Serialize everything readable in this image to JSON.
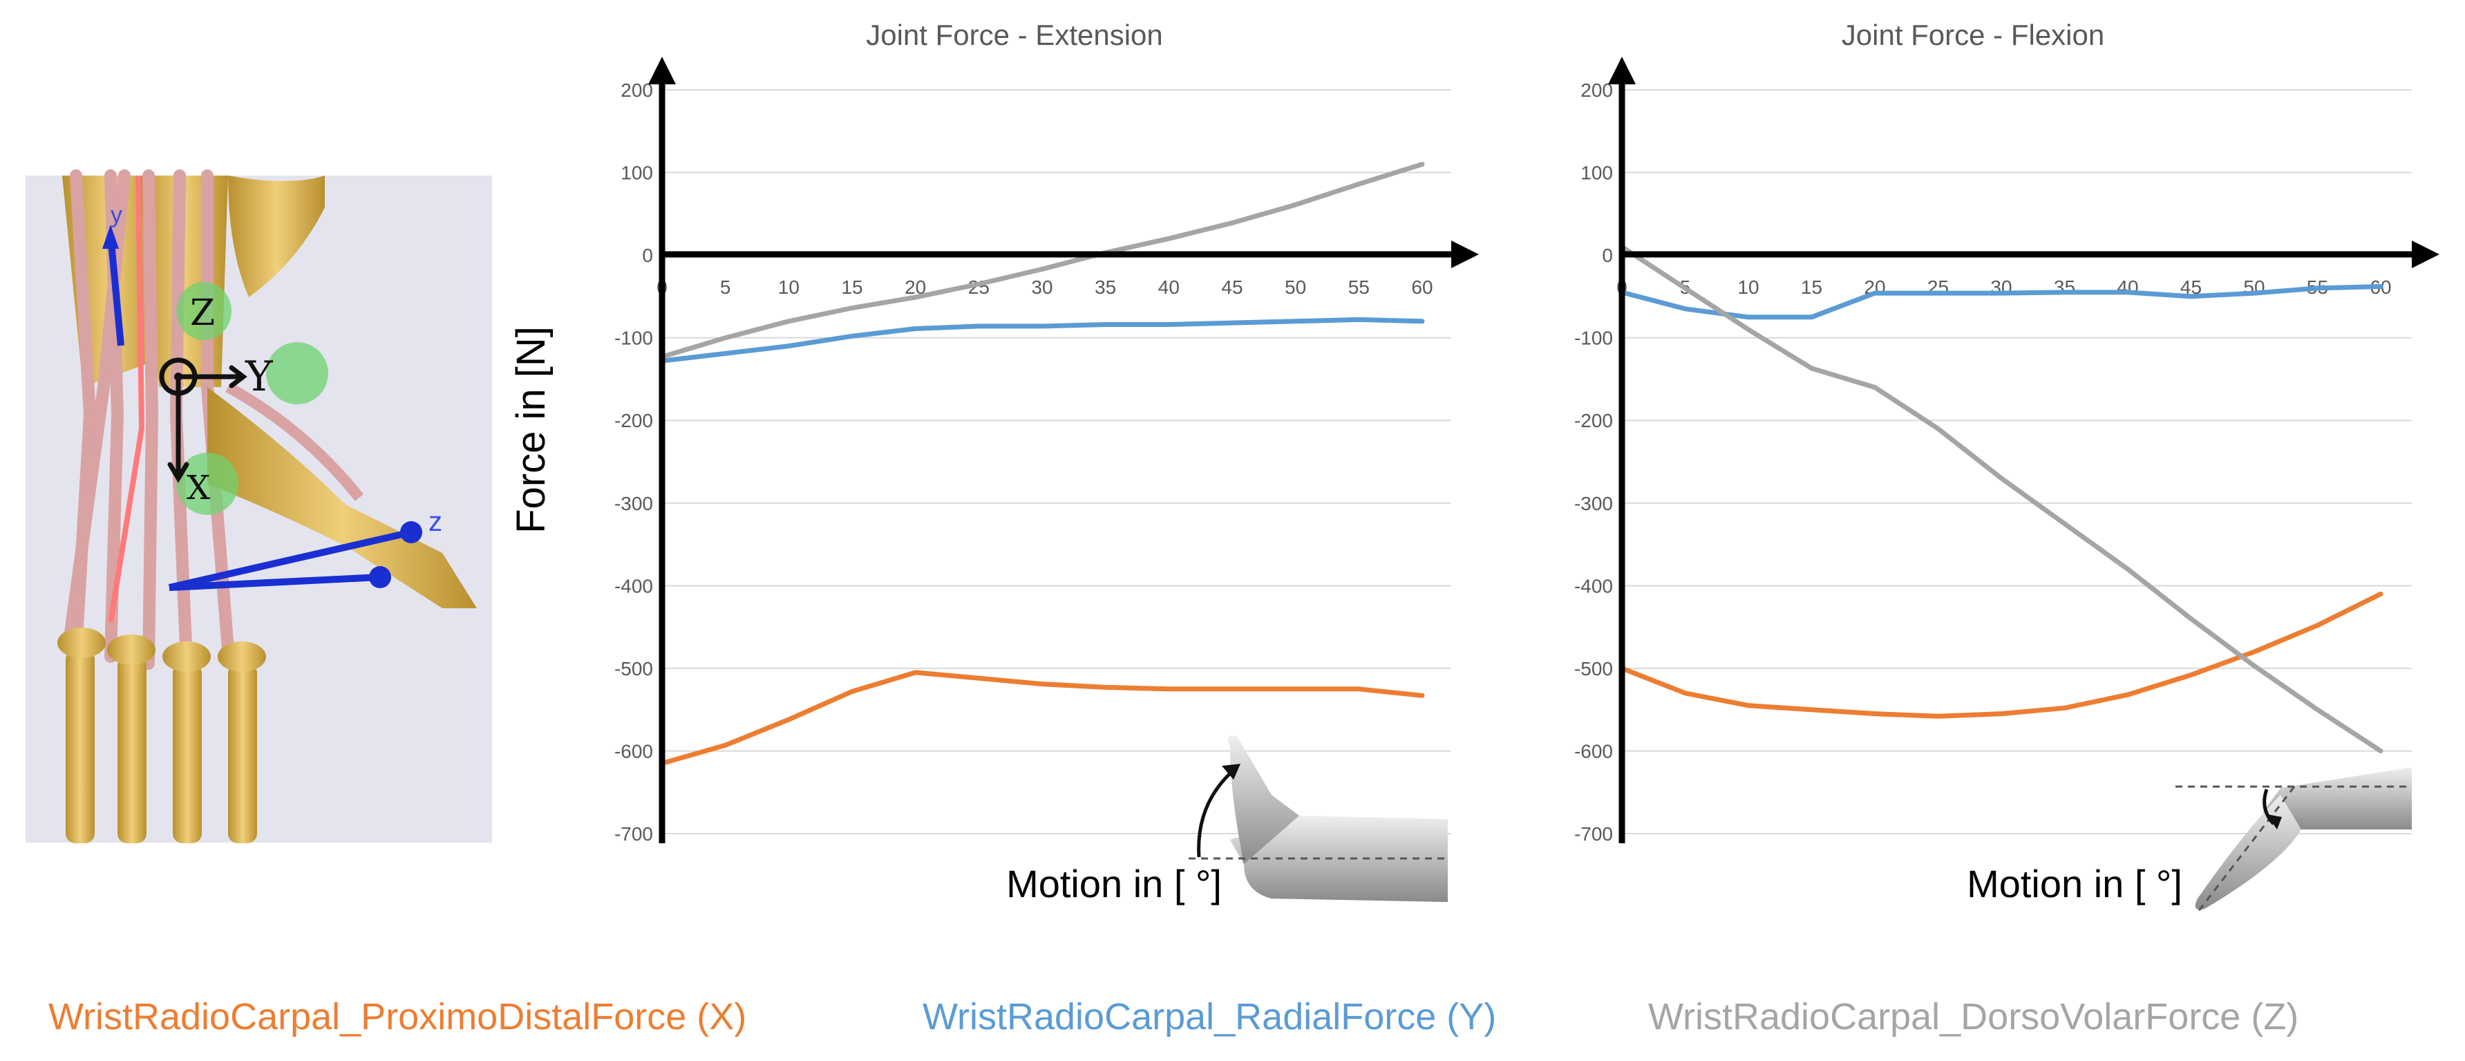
{
  "chart_data": [
    {
      "type": "line",
      "title": "Joint Force - Extension",
      "ylabel": "Force in [N]",
      "xlabel": "Motion in [ °]",
      "ylim": [
        -700,
        200
      ],
      "yticks": [
        200,
        100,
        0,
        -100,
        -200,
        -300,
        -400,
        -500,
        -600,
        -700
      ],
      "x": [
        0,
        5,
        10,
        15,
        20,
        25,
        30,
        35,
        40,
        45,
        50,
        55,
        60
      ],
      "grid": true,
      "series": [
        {
          "name": "WristRadioCarpal_ProximoDistalForce (X)",
          "color": "#ED7D31",
          "values": [
            -615,
            -593,
            -562,
            -528,
            -505,
            -512,
            -519,
            -523,
            -525,
            -525,
            -525,
            -525,
            -533
          ]
        },
        {
          "name": "WristRadioCarpal_RadialForce (Y)",
          "color": "#5B9BD5",
          "values": [
            -128,
            -119,
            -110,
            -98,
            -89,
            -86,
            -86,
            -84,
            -84,
            -82,
            -80,
            -78,
            -80
          ]
        },
        {
          "name": "WristRadioCarpal_DorsoVolarForce (Z)",
          "color": "#A5A5A5",
          "values": [
            -123,
            -100,
            -80,
            -64,
            -51,
            -35,
            -17,
            3,
            20,
            39,
            61,
            86,
            110
          ]
        }
      ]
    },
    {
      "type": "line",
      "title": "Joint Force - Flexion",
      "ylabel": "",
      "xlabel": "Motion in [ °]",
      "ylim": [
        -700,
        200
      ],
      "yticks": [
        200,
        100,
        0,
        -100,
        -200,
        -300,
        -400,
        -500,
        -600,
        -700
      ],
      "x": [
        0,
        5,
        10,
        15,
        20,
        25,
        30,
        35,
        40,
        45,
        50,
        55,
        60
      ],
      "grid": true,
      "series": [
        {
          "name": "WristRadioCarpal_ProximoDistalForce (X)",
          "color": "#ED7D31",
          "values": [
            -500,
            -530,
            -545,
            -550,
            -555,
            -558,
            -555,
            -548,
            -532,
            -508,
            -480,
            -448,
            -410
          ]
        },
        {
          "name": "WristRadioCarpal_RadialForce (Y)",
          "color": "#5B9BD5",
          "values": [
            -45,
            -65,
            -75,
            -75,
            -46,
            -46,
            -46,
            -45,
            -45,
            -50,
            -46,
            -40,
            -38
          ]
        },
        {
          "name": "WristRadioCarpal_DorsoVolarForce (Z)",
          "color": "#A5A5A5",
          "values": [
            10,
            -40,
            -90,
            -137,
            -160,
            -210,
            -270,
            -325,
            -380,
            -440,
            -497,
            -550,
            -600
          ]
        }
      ]
    }
  ],
  "anatomy_labels": {
    "z_hand": "Z",
    "y_hand": "Y",
    "x_hand": "X",
    "y_axis": "y",
    "z_axis": "z"
  },
  "legend": [
    {
      "label": "WristRadioCarpal_ProximoDistalForce (X)",
      "color": "#ED7D31"
    },
    {
      "label": "WristRadioCarpal_RadialForce (Y)",
      "color": "#5B9BD5"
    },
    {
      "label": "WristRadioCarpal_DorsoVolarForce (Z)",
      "color": "#A5A5A5"
    }
  ]
}
